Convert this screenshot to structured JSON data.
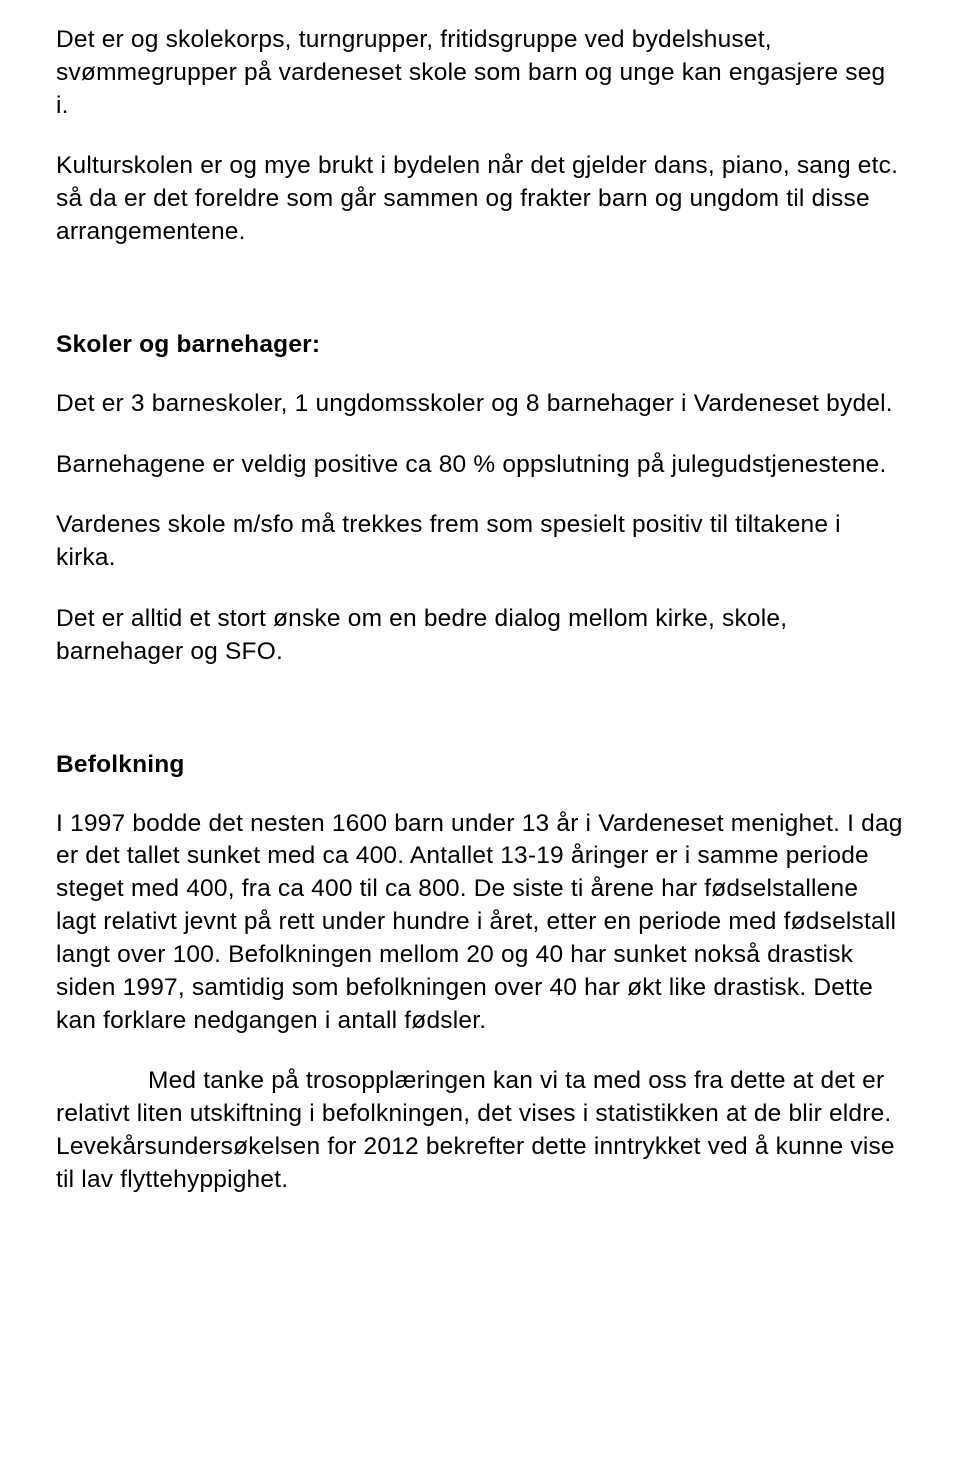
{
  "p1": "Det er og skolekorps, turngrupper, fritidsgruppe ved bydelshuset, svømmegrupper på vardeneset skole som barn og unge kan engasjere seg i.",
  "p2": "Kulturskolen er og mye brukt i bydelen når det gjelder dans, piano, sang etc. så da er det foreldre som går sammen og frakter barn og ungdom til disse arrangementene.",
  "h1": "Skoler og barnehager:",
  "p3": "Det er 3 barneskoler, 1 ungdomsskoler og 8 barnehager i Vardeneset bydel.",
  "p4": "Barnehagene er veldig positive ca 80 % oppslutning på julegudstjenestene.",
  "p5": "Vardenes skole m/sfo må trekkes frem som spesielt positiv til tiltakene i kirka.",
  "p6": "Det er alltid et stort ønske om en bedre dialog mellom kirke, skole, barnehager og SFO.",
  "h2": "Befolkning",
  "p7": "I 1997 bodde det nesten 1600 barn under 13 år i Vardeneset menighet. I dag er det tallet sunket med ca 400. Antallet 13-19 åringer er i samme periode steget med 400, fra ca 400 til ca 800. De siste ti årene har fødselstallene lagt relativt jevnt på rett under hundre i året, etter en periode med fødselstall langt over 100. Befolkningen mellom 20 og 40 har sunket nokså drastisk siden 1997, samtidig som befolkningen over 40 har økt like drastisk. Dette kan forklare nedgangen i antall fødsler.",
  "p8": "Med tanke på trosopplæringen kan vi ta med oss fra dette at det er relativt liten utskiftning i befolkningen, det vises i statistikken at de blir eldre. Levekårsundersøkelsen for 2012 bekrefter dette inntrykket ved å kunne vise til lav flyttehyppighet."
}
